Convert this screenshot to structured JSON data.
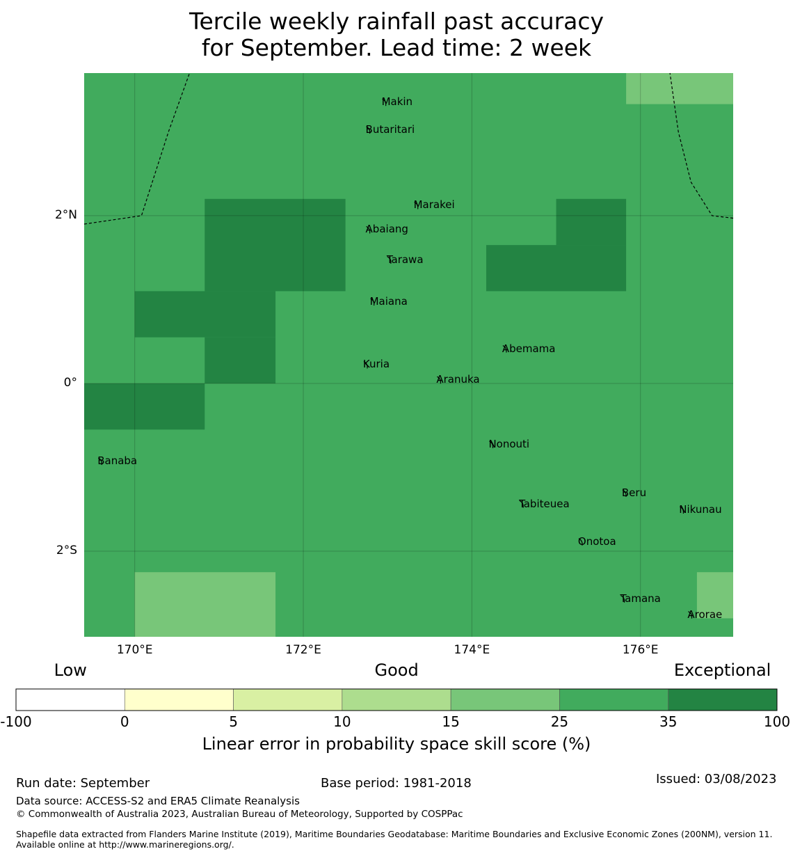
{
  "title": {
    "line1": "Tercile weekly rainfall past accuracy",
    "line2": "for September. Lead time: 2 week"
  },
  "map": {
    "lon_range": [
      169.4,
      177.1
    ],
    "lat_range": [
      -3.02,
      3.7
    ],
    "lat_ticks": [
      {
        "value": 2,
        "label": "2°N"
      },
      {
        "value": 0,
        "label": "0°"
      },
      {
        "value": -2,
        "label": "2°S"
      }
    ],
    "lon_ticks": [
      {
        "value": 170,
        "label": "170°E"
      },
      {
        "value": 172,
        "label": "172°E"
      },
      {
        "value": 174,
        "label": "174°E"
      },
      {
        "value": 176,
        "label": "176°E"
      }
    ],
    "background_color": "#41ab5d",
    "cells": [
      {
        "lon0": 170.83,
        "lon1": 172.5,
        "lat0": 1.1,
        "lat1": 2.2,
        "color": "#238443"
      },
      {
        "lon0": 170.0,
        "lon1": 171.67,
        "lat0": 0.55,
        "lat1": 1.1,
        "color": "#238443"
      },
      {
        "lon0": 170.83,
        "lon1": 171.67,
        "lat0": 0.0,
        "lat1": 0.55,
        "color": "#238443"
      },
      {
        "lon0": 169.4,
        "lon1": 170.83,
        "lat0": -0.55,
        "lat1": 0.0,
        "color": "#238443"
      },
      {
        "lon0": 174.17,
        "lon1": 175.83,
        "lat0": 1.1,
        "lat1": 1.65,
        "color": "#238443"
      },
      {
        "lon0": 175.0,
        "lon1": 175.83,
        "lat0": 1.65,
        "lat1": 2.2,
        "color": "#238443"
      },
      {
        "lon0": 175.83,
        "lon1": 177.1,
        "lat0": 3.33,
        "lat1": 3.7,
        "color": "#78c679"
      },
      {
        "lon0": 170.0,
        "lon1": 171.67,
        "lat0": -3.02,
        "lat1": -2.25,
        "color": "#78c679"
      },
      {
        "lon0": 176.67,
        "lon1": 177.1,
        "lat0": -2.8,
        "lat1": -2.25,
        "color": "#78c679"
      }
    ],
    "eez_boundaries": [
      [
        [
          169.4,
          1.9
        ],
        [
          170.08,
          2.0
        ],
        [
          170.4,
          3.0
        ],
        [
          170.65,
          3.7
        ]
      ],
      [
        [
          177.1,
          1.97
        ],
        [
          176.85,
          2.0
        ],
        [
          176.6,
          2.4
        ],
        [
          176.45,
          3.0
        ],
        [
          176.35,
          3.7
        ]
      ]
    ],
    "islands": [
      {
        "name": "Makin",
        "lon": 172.97,
        "lat": 3.35
      },
      {
        "name": "Butaritari",
        "lon": 172.78,
        "lat": 3.02
      },
      {
        "name": "Marakei",
        "lon": 173.35,
        "lat": 2.12
      },
      {
        "name": "Abaiang",
        "lon": 172.78,
        "lat": 1.83
      },
      {
        "name": "Tarawa",
        "lon": 173.03,
        "lat": 1.47
      },
      {
        "name": "Maiana",
        "lon": 172.83,
        "lat": 0.97
      },
      {
        "name": "Abemama",
        "lon": 174.4,
        "lat": 0.41
      },
      {
        "name": "Kuria",
        "lon": 172.75,
        "lat": 0.22
      },
      {
        "name": "Aranuka",
        "lon": 173.62,
        "lat": 0.04
      },
      {
        "name": "Nonouti",
        "lon": 174.24,
        "lat": -0.73
      },
      {
        "name": "Banaba",
        "lon": 169.6,
        "lat": -0.93
      },
      {
        "name": "Beru",
        "lon": 175.82,
        "lat": -1.31
      },
      {
        "name": "Tabiteuea",
        "lon": 174.6,
        "lat": -1.44
      },
      {
        "name": "Nikunau",
        "lon": 176.5,
        "lat": -1.51
      },
      {
        "name": "Onotoa",
        "lon": 175.3,
        "lat": -1.89
      },
      {
        "name": "Tamana",
        "lon": 175.8,
        "lat": -2.57
      },
      {
        "name": "Arorae",
        "lon": 176.6,
        "lat": -2.76
      }
    ]
  },
  "colorbar": {
    "categories": [
      {
        "label": "Low",
        "ticks": [
          0,
          1
        ]
      },
      {
        "label": "Good",
        "ticks": [
          3,
          4
        ]
      },
      {
        "label": "Exceptional",
        "ticks": [
          6,
          7
        ]
      }
    ],
    "bins": [
      "#ffffff",
      "#ffffcc",
      "#d9f0a3",
      "#addd8e",
      "#78c679",
      "#41ab5d",
      "#238443"
    ],
    "ticks": [
      "-100",
      "0",
      "5",
      "10",
      "15",
      "25",
      "35",
      "100"
    ],
    "title": "Linear error in probability space skill score (%)"
  },
  "footer": {
    "run_date": "Run date: September",
    "base_period": "Base period: 1981-2018",
    "issued": "Issued: 03/08/2023",
    "data_source": "Data source: ACCESS-S2 and ERA5 Climate Reanalysis",
    "copyright": "© Commonwealth of Australia 2023, Australian Bureau of Meteorology, Supported by COSPPac",
    "shapefile": "Shapefile data extracted from Flanders Marine Institute (2019), Maritime Boundaries Geodatabase: Maritime Boundaries and Exclusive Economic Zones (200NM), version 11. Available online at http://www.marineregions.org/."
  }
}
